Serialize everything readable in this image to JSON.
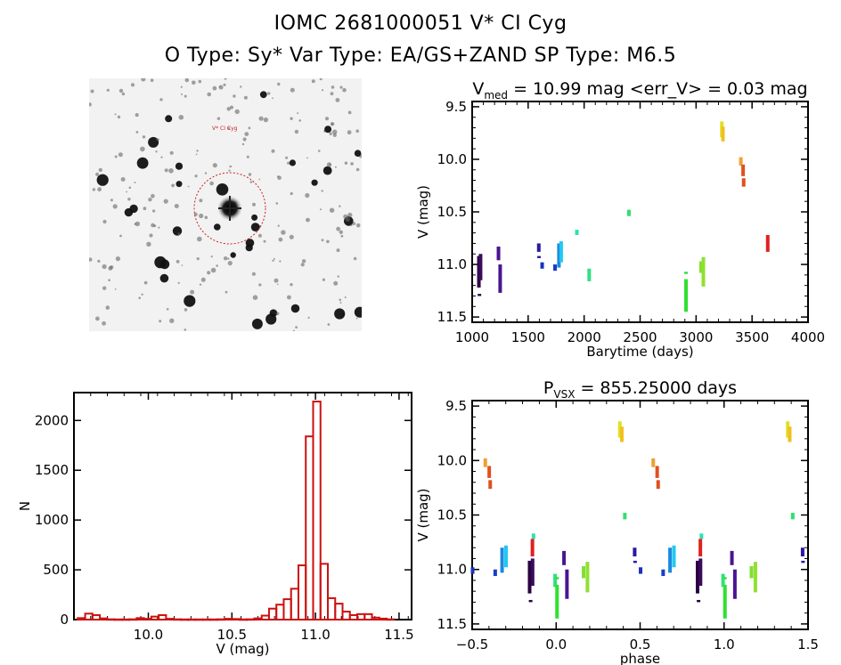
{
  "header": {
    "title_line1": "IOMC 2681000051    V* CI Cyg",
    "title_line2": "O Type: Sy*  Var Type: EA/GS+ZAND  SP Type: M6.5"
  },
  "finder_chart": {
    "target_label": "V* CI Cyg",
    "marker_color": "#cc2222"
  },
  "chart_data": [
    {
      "id": "light_curve",
      "type": "scatter",
      "title": "V_med = 10.99 mag <err_V> = 0.03 mag",
      "title_parts": {
        "main": "V",
        "sub": "med",
        "rest": " = 10.99 mag <err_V> = 0.03 mag"
      },
      "xlabel": "Barytime (days)",
      "ylabel": "V (mag)",
      "xlim": [
        1000,
        4000
      ],
      "ylim": [
        11.55,
        9.45
      ],
      "y_inverted": true,
      "xticks": [
        1000,
        1500,
        2000,
        2500,
        3000,
        3500,
        4000
      ],
      "yticks": [
        9.5,
        10.0,
        10.5,
        11.0,
        11.5
      ],
      "ytick_labels": [
        "9.5",
        "10.0",
        "10.5",
        "11.0",
        "11.5"
      ],
      "segments": [
        {
          "t": 1060,
          "v_min": 10.92,
          "v_max": 11.22,
          "color": "#2a0040"
        },
        {
          "t": 1075,
          "v_min": 10.9,
          "v_max": 11.15,
          "color": "#3b0a5c"
        },
        {
          "t": 1065,
          "v_min": 11.28,
          "v_max": 11.3,
          "color": "#2a0040"
        },
        {
          "t": 1235,
          "v_min": 10.83,
          "v_max": 10.96,
          "color": "#4a1490"
        },
        {
          "t": 1250,
          "v_min": 11.0,
          "v_max": 11.27,
          "color": "#4a1490"
        },
        {
          "t": 1595,
          "v_min": 10.8,
          "v_max": 10.88,
          "color": "#2a1aa0"
        },
        {
          "t": 1597,
          "v_min": 10.92,
          "v_max": 10.94,
          "color": "#2a1aa0"
        },
        {
          "t": 1625,
          "v_min": 10.98,
          "v_max": 11.04,
          "color": "#1a30c0"
        },
        {
          "t": 1740,
          "v_min": 11.0,
          "v_max": 11.06,
          "color": "#1a3cc8"
        },
        {
          "t": 1775,
          "v_min": 10.8,
          "v_max": 11.03,
          "color": "#1a8ae0"
        },
        {
          "t": 1795,
          "v_min": 10.78,
          "v_max": 10.98,
          "color": "#22c8f0"
        },
        {
          "t": 1935,
          "v_min": 10.67,
          "v_max": 10.72,
          "color": "#30e0b0"
        },
        {
          "t": 2045,
          "v_min": 11.04,
          "v_max": 11.16,
          "color": "#30e080"
        },
        {
          "t": 2400,
          "v_min": 10.48,
          "v_max": 10.54,
          "color": "#30e070"
        },
        {
          "t": 2910,
          "v_min": 11.14,
          "v_max": 11.45,
          "color": "#30e030"
        },
        {
          "t": 2910,
          "v_min": 11.07,
          "v_max": 11.09,
          "color": "#30e030"
        },
        {
          "t": 3045,
          "v_min": 10.97,
          "v_max": 11.08,
          "color": "#80e030"
        },
        {
          "t": 3065,
          "v_min": 10.93,
          "v_max": 11.21,
          "color": "#90e030"
        },
        {
          "t": 3230,
          "v_min": 9.64,
          "v_max": 9.79,
          "color": "#e0e020"
        },
        {
          "t": 3240,
          "v_min": 9.69,
          "v_max": 9.83,
          "color": "#f0c020"
        },
        {
          "t": 3400,
          "v_min": 9.98,
          "v_max": 10.06,
          "color": "#f0a030"
        },
        {
          "t": 3420,
          "v_min": 10.05,
          "v_max": 10.16,
          "color": "#e05020"
        },
        {
          "t": 3425,
          "v_min": 10.18,
          "v_max": 10.26,
          "color": "#e05020"
        },
        {
          "t": 3640,
          "v_min": 10.72,
          "v_max": 10.88,
          "color": "#e02020"
        }
      ]
    },
    {
      "id": "histogram",
      "type": "bar",
      "title": "",
      "xlabel": "V (mag)",
      "ylabel": "N",
      "xlim": [
        9.555,
        11.575
      ],
      "ylim": [
        0,
        2280
      ],
      "xticks": [
        10.0,
        10.5,
        11.0,
        11.5
      ],
      "xtick_labels": [
        "10.0",
        "10.5",
        "11.0",
        "11.5"
      ],
      "yticks": [
        0,
        500,
        1000,
        1500,
        2000
      ],
      "bin_width": 0.044,
      "bar_color": "#cc1111",
      "bins": [
        {
          "center": 9.6,
          "count": 15
        },
        {
          "center": 9.644,
          "count": 60
        },
        {
          "center": 9.688,
          "count": 45
        },
        {
          "center": 9.732,
          "count": 12
        },
        {
          "center": 9.776,
          "count": 3
        },
        {
          "center": 9.82,
          "count": 2
        },
        {
          "center": 9.864,
          "count": 2
        },
        {
          "center": 9.908,
          "count": 3
        },
        {
          "center": 9.952,
          "count": 15
        },
        {
          "center": 9.996,
          "count": 8
        },
        {
          "center": 10.04,
          "count": 30
        },
        {
          "center": 10.084,
          "count": 45
        },
        {
          "center": 10.128,
          "count": 8
        },
        {
          "center": 10.172,
          "count": 3
        },
        {
          "center": 10.216,
          "count": 2
        },
        {
          "center": 10.26,
          "count": 2
        },
        {
          "center": 10.304,
          "count": 2
        },
        {
          "center": 10.348,
          "count": 2
        },
        {
          "center": 10.392,
          "count": 2
        },
        {
          "center": 10.436,
          "count": 3
        },
        {
          "center": 10.48,
          "count": 8
        },
        {
          "center": 10.524,
          "count": 6
        },
        {
          "center": 10.568,
          "count": 2
        },
        {
          "center": 10.612,
          "count": 3
        },
        {
          "center": 10.656,
          "count": 12
        },
        {
          "center": 10.7,
          "count": 40
        },
        {
          "center": 10.744,
          "count": 110
        },
        {
          "center": 10.788,
          "count": 150
        },
        {
          "center": 10.832,
          "count": 205
        },
        {
          "center": 10.876,
          "count": 310
        },
        {
          "center": 10.92,
          "count": 545
        },
        {
          "center": 10.964,
          "count": 1840
        },
        {
          "center": 11.008,
          "count": 2190
        },
        {
          "center": 11.052,
          "count": 560
        },
        {
          "center": 11.096,
          "count": 215
        },
        {
          "center": 11.14,
          "count": 160
        },
        {
          "center": 11.184,
          "count": 80
        },
        {
          "center": 11.228,
          "count": 45
        },
        {
          "center": 11.272,
          "count": 55
        },
        {
          "center": 11.316,
          "count": 55
        },
        {
          "center": 11.36,
          "count": 20
        },
        {
          "center": 11.404,
          "count": 10
        },
        {
          "center": 11.448,
          "count": 3
        }
      ]
    },
    {
      "id": "phased_curve",
      "type": "scatter",
      "title": "P_VSX = 855.25000 days",
      "title_parts": {
        "main": "P",
        "sub": "VSX",
        "rest": " = 855.25000 days"
      },
      "xlabel": "phase",
      "ylabel": "V (mag)",
      "xlim": [
        -0.5,
        1.5
      ],
      "ylim": [
        11.55,
        9.45
      ],
      "y_inverted": true,
      "xticks": [
        -0.5,
        0.0,
        0.5,
        1.0,
        1.5
      ],
      "xtick_labels": [
        "−0.5",
        "0.0",
        "0.5",
        "1.0",
        "1.5"
      ],
      "yticks": [
        9.5,
        10.0,
        10.5,
        11.0,
        11.5
      ],
      "ytick_labels": [
        "9.5",
        "10.0",
        "10.5",
        "11.0",
        "11.5"
      ],
      "period_days": 855.25,
      "epoch_days": 1195
    }
  ]
}
